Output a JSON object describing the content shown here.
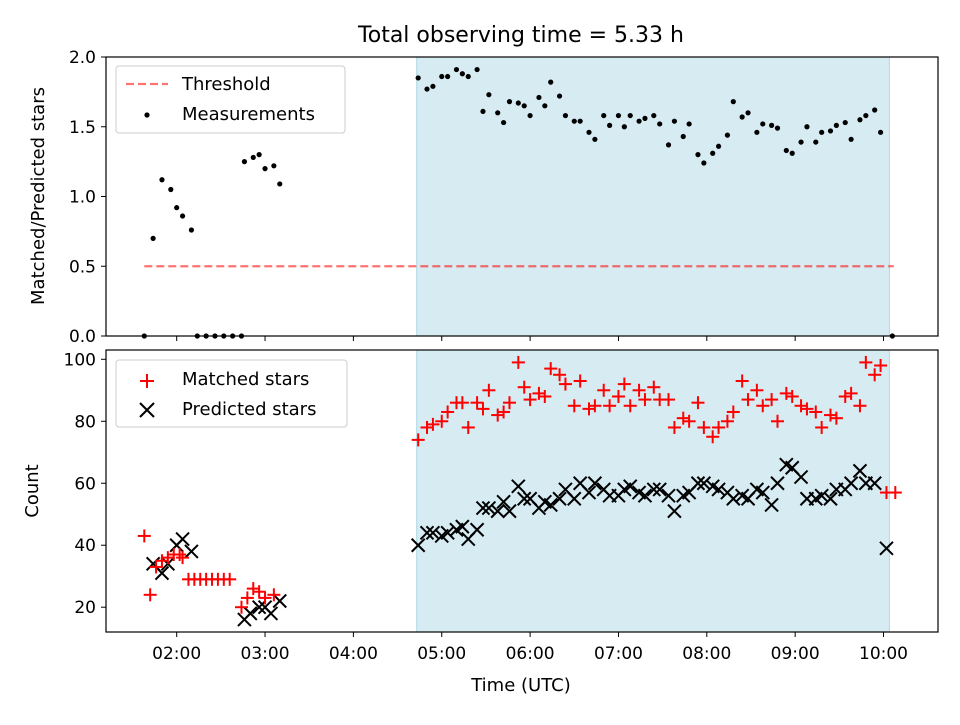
{
  "chart_data": [
    {
      "type": "scatter",
      "title": "Total observing time = 5.33 h",
      "xlabel": "",
      "ylabel": "Matched/Predicted stars",
      "xlim": [
        "01:12",
        "10:37"
      ],
      "ylim": [
        0,
        2.0
      ],
      "yticks": [
        "0.0",
        "0.5",
        "1.0",
        "1.5",
        "2.0"
      ],
      "grid": false,
      "legend_position": "top-left",
      "shaded_interval": {
        "start": "04:43",
        "end": "10:04",
        "color": "#add8e6"
      },
      "threshold": {
        "name": "Threshold",
        "value": 0.5,
        "x_start": "01:38",
        "x_end": "10:07",
        "color": "#ff0000",
        "style": "dashed"
      },
      "series": [
        {
          "name": "Measurements",
          "color": "#000000",
          "marker": "dot",
          "points": [
            [
              "01:38",
              0.0
            ],
            [
              "01:44",
              0.7
            ],
            [
              "01:50",
              1.12
            ],
            [
              "01:56",
              1.05
            ],
            [
              "02:00",
              0.92
            ],
            [
              "02:04",
              0.86
            ],
            [
              "02:10",
              0.76
            ],
            [
              "02:14",
              0.0
            ],
            [
              "02:20",
              0.0
            ],
            [
              "02:26",
              0.0
            ],
            [
              "02:32",
              0.0
            ],
            [
              "02:38",
              0.0
            ],
            [
              "02:44",
              0.0
            ],
            [
              "02:46",
              1.25
            ],
            [
              "02:52",
              1.28
            ],
            [
              "02:56",
              1.3
            ],
            [
              "03:00",
              1.2
            ],
            [
              "03:06",
              1.22
            ],
            [
              "03:10",
              1.09
            ],
            [
              "04:44",
              1.85
            ],
            [
              "04:50",
              1.77
            ],
            [
              "04:54",
              1.79
            ],
            [
              "05:00",
              1.86
            ],
            [
              "05:04",
              1.86
            ],
            [
              "05:10",
              1.91
            ],
            [
              "05:14",
              1.88
            ],
            [
              "05:18",
              1.86
            ],
            [
              "05:24",
              1.91
            ],
            [
              "05:28",
              1.61
            ],
            [
              "05:32",
              1.73
            ],
            [
              "05:38",
              1.6
            ],
            [
              "05:42",
              1.53
            ],
            [
              "05:46",
              1.68
            ],
            [
              "05:52",
              1.67
            ],
            [
              "05:56",
              1.65
            ],
            [
              "06:00",
              1.58
            ],
            [
              "06:06",
              1.71
            ],
            [
              "06:10",
              1.65
            ],
            [
              "06:14",
              1.82
            ],
            [
              "06:20",
              1.72
            ],
            [
              "06:24",
              1.58
            ],
            [
              "06:30",
              1.54
            ],
            [
              "06:34",
              1.54
            ],
            [
              "06:40",
              1.46
            ],
            [
              "06:44",
              1.41
            ],
            [
              "06:50",
              1.58
            ],
            [
              "06:54",
              1.51
            ],
            [
              "07:00",
              1.58
            ],
            [
              "07:04",
              1.5
            ],
            [
              "07:08",
              1.58
            ],
            [
              "07:14",
              1.54
            ],
            [
              "07:18",
              1.56
            ],
            [
              "07:24",
              1.58
            ],
            [
              "07:28",
              1.52
            ],
            [
              "07:34",
              1.37
            ],
            [
              "07:38",
              1.54
            ],
            [
              "07:44",
              1.43
            ],
            [
              "07:48",
              1.52
            ],
            [
              "07:54",
              1.3
            ],
            [
              "07:58",
              1.24
            ],
            [
              "08:04",
              1.31
            ],
            [
              "08:08",
              1.36
            ],
            [
              "08:14",
              1.44
            ],
            [
              "08:18",
              1.68
            ],
            [
              "08:24",
              1.57
            ],
            [
              "08:28",
              1.6
            ],
            [
              "08:34",
              1.46
            ],
            [
              "08:38",
              1.52
            ],
            [
              "08:44",
              1.51
            ],
            [
              "08:48",
              1.49
            ],
            [
              "08:54",
              1.33
            ],
            [
              "08:58",
              1.31
            ],
            [
              "09:04",
              1.39
            ],
            [
              "09:08",
              1.5
            ],
            [
              "09:14",
              1.39
            ],
            [
              "09:18",
              1.46
            ],
            [
              "09:24",
              1.47
            ],
            [
              "09:28",
              1.51
            ],
            [
              "09:34",
              1.53
            ],
            [
              "09:38",
              1.41
            ],
            [
              "09:44",
              1.55
            ],
            [
              "09:48",
              1.58
            ],
            [
              "09:54",
              1.62
            ],
            [
              "09:58",
              1.46
            ],
            [
              "10:06",
              0.0
            ]
          ]
        }
      ]
    },
    {
      "type": "scatter",
      "title": "",
      "xlabel": "Time (UTC)",
      "ylabel": "Count",
      "xlim": [
        "01:12",
        "10:37"
      ],
      "ylim": [
        12,
        103
      ],
      "xticks": [
        "02:00",
        "03:00",
        "04:00",
        "05:00",
        "06:00",
        "07:00",
        "08:00",
        "09:00",
        "10:00"
      ],
      "yticks": [
        "20",
        "40",
        "60",
        "80",
        "100"
      ],
      "grid": false,
      "legend_position": "top-left",
      "shaded_interval": {
        "start": "04:43",
        "end": "10:04",
        "color": "#add8e6"
      },
      "series": [
        {
          "name": "Matched stars",
          "color": "#ff0000",
          "marker": "plus",
          "points": [
            [
              "01:38",
              43
            ],
            [
              "01:42",
              24
            ],
            [
              "01:46",
              33
            ],
            [
              "01:50",
              35
            ],
            [
              "01:54",
              36
            ],
            [
              "01:58",
              37
            ],
            [
              "02:02",
              37
            ],
            [
              "02:04",
              36
            ],
            [
              "02:08",
              29
            ],
            [
              "02:12",
              29
            ],
            [
              "02:16",
              29
            ],
            [
              "02:20",
              29
            ],
            [
              "02:24",
              29
            ],
            [
              "02:28",
              29
            ],
            [
              "02:32",
              29
            ],
            [
              "02:36",
              29
            ],
            [
              "02:44",
              20
            ],
            [
              "02:48",
              23
            ],
            [
              "02:52",
              26
            ],
            [
              "02:56",
              25
            ],
            [
              "03:00",
              23
            ],
            [
              "03:06",
              24
            ],
            [
              "04:44",
              74
            ],
            [
              "04:50",
              78
            ],
            [
              "04:54",
              79
            ],
            [
              "05:00",
              80
            ],
            [
              "05:04",
              83
            ],
            [
              "05:10",
              86
            ],
            [
              "05:14",
              86
            ],
            [
              "05:18",
              78
            ],
            [
              "05:24",
              86
            ],
            [
              "05:28",
              84
            ],
            [
              "05:32",
              90
            ],
            [
              "05:38",
              82
            ],
            [
              "05:42",
              83
            ],
            [
              "05:46",
              86
            ],
            [
              "05:52",
              99
            ],
            [
              "05:56",
              91
            ],
            [
              "06:00",
              87
            ],
            [
              "06:06",
              89
            ],
            [
              "06:10",
              88
            ],
            [
              "06:14",
              97
            ],
            [
              "06:20",
              95
            ],
            [
              "06:24",
              92
            ],
            [
              "06:30",
              85
            ],
            [
              "06:34",
              93
            ],
            [
              "06:40",
              84
            ],
            [
              "06:44",
              85
            ],
            [
              "06:50",
              90
            ],
            [
              "06:54",
              85
            ],
            [
              "07:00",
              88
            ],
            [
              "07:04",
              92
            ],
            [
              "07:08",
              85
            ],
            [
              "07:14",
              90
            ],
            [
              "07:18",
              87
            ],
            [
              "07:24",
              91
            ],
            [
              "07:28",
              87
            ],
            [
              "07:34",
              87
            ],
            [
              "07:38",
              78
            ],
            [
              "07:44",
              81
            ],
            [
              "07:48",
              80
            ],
            [
              "07:54",
              86
            ],
            [
              "07:58",
              78
            ],
            [
              "08:04",
              75
            ],
            [
              "08:08",
              78
            ],
            [
              "08:14",
              80
            ],
            [
              "08:18",
              83
            ],
            [
              "08:24",
              93
            ],
            [
              "08:28",
              87
            ],
            [
              "08:34",
              90
            ],
            [
              "08:38",
              85
            ],
            [
              "08:44",
              87
            ],
            [
              "08:48",
              80
            ],
            [
              "08:54",
              89
            ],
            [
              "08:58",
              88
            ],
            [
              "09:04",
              85
            ],
            [
              "09:08",
              84
            ],
            [
              "09:14",
              83
            ],
            [
              "09:18",
              78
            ],
            [
              "09:24",
              82
            ],
            [
              "09:28",
              81
            ],
            [
              "09:34",
              88
            ],
            [
              "09:38",
              89
            ],
            [
              "09:44",
              85
            ],
            [
              "09:48",
              99
            ],
            [
              "09:54",
              95
            ],
            [
              "09:58",
              98
            ],
            [
              "10:02",
              57
            ],
            [
              "10:08",
              57
            ]
          ]
        },
        {
          "name": "Predicted stars",
          "color": "#000000",
          "marker": "x",
          "points": [
            [
              "01:44",
              34
            ],
            [
              "01:50",
              31
            ],
            [
              "01:54",
              34
            ],
            [
              "02:00",
              40
            ],
            [
              "02:04",
              42
            ],
            [
              "02:10",
              38
            ],
            [
              "02:46",
              16
            ],
            [
              "02:50",
              18
            ],
            [
              "02:56",
              20
            ],
            [
              "03:00",
              20
            ],
            [
              "03:04",
              18
            ],
            [
              "03:10",
              22
            ],
            [
              "04:44",
              40
            ],
            [
              "04:50",
              44
            ],
            [
              "04:54",
              44
            ],
            [
              "05:00",
              43
            ],
            [
              "05:04",
              44
            ],
            [
              "05:10",
              45
            ],
            [
              "05:14",
              46
            ],
            [
              "05:18",
              42
            ],
            [
              "05:24",
              45
            ],
            [
              "05:28",
              52
            ],
            [
              "05:32",
              52
            ],
            [
              "05:38",
              51
            ],
            [
              "05:42",
              54
            ],
            [
              "05:46",
              51
            ],
            [
              "05:52",
              59
            ],
            [
              "05:56",
              55
            ],
            [
              "06:00",
              55
            ],
            [
              "06:06",
              52
            ],
            [
              "06:10",
              54
            ],
            [
              "06:14",
              53
            ],
            [
              "06:20",
              55
            ],
            [
              "06:24",
              58
            ],
            [
              "06:30",
              55
            ],
            [
              "06:34",
              60
            ],
            [
              "06:40",
              57
            ],
            [
              "06:44",
              60
            ],
            [
              "06:50",
              58
            ],
            [
              "06:54",
              56
            ],
            [
              "07:00",
              56
            ],
            [
              "07:04",
              58
            ],
            [
              "07:08",
              59
            ],
            [
              "07:14",
              57
            ],
            [
              "07:18",
              56
            ],
            [
              "07:24",
              58
            ],
            [
              "07:28",
              58
            ],
            [
              "07:34",
              56
            ],
            [
              "07:38",
              51
            ],
            [
              "07:44",
              56
            ],
            [
              "07:48",
              57
            ],
            [
              "07:54",
              60
            ],
            [
              "07:58",
              60
            ],
            [
              "08:04",
              59
            ],
            [
              "08:08",
              58
            ],
            [
              "08:14",
              57
            ],
            [
              "08:18",
              55
            ],
            [
              "08:24",
              56
            ],
            [
              "08:28",
              55
            ],
            [
              "08:34",
              58
            ],
            [
              "08:38",
              57
            ],
            [
              "08:44",
              53
            ],
            [
              "08:48",
              60
            ],
            [
              "08:54",
              66
            ],
            [
              "08:58",
              65
            ],
            [
              "09:04",
              62
            ],
            [
              "09:08",
              55
            ],
            [
              "09:14",
              55
            ],
            [
              "09:18",
              56
            ],
            [
              "09:24",
              55
            ],
            [
              "09:28",
              58
            ],
            [
              "09:34",
              58
            ],
            [
              "09:38",
              60
            ],
            [
              "09:44",
              64
            ],
            [
              "09:48",
              60
            ],
            [
              "09:54",
              60
            ],
            [
              "10:02",
              39
            ]
          ]
        }
      ]
    }
  ]
}
